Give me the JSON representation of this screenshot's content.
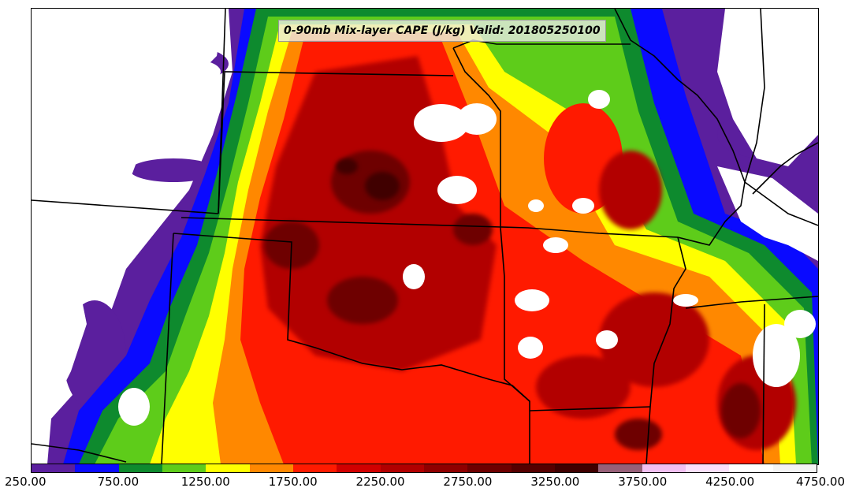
{
  "title": "0-90mb Mix-layer CAPE (J/kg) Valid: 201805250100",
  "colorbar": {
    "colors": [
      "#5b1f9e",
      "#0a0aff",
      "#0e8a2e",
      "#5ecc1a",
      "#ffff00",
      "#ff8800",
      "#ff1a00",
      "#d10000",
      "#b20000",
      "#8f0000",
      "#6e0000",
      "#560000",
      "#3f0000",
      "#976078",
      "#f2c0f2",
      "#fbe0fb",
      "#ffffff",
      "#f4f4f4"
    ],
    "tick_labels": [
      "250.00",
      "750.00",
      "1250.00",
      "1750.00",
      "2250.00",
      "2750.00",
      "3250.00",
      "3750.00",
      "4250.00",
      "4750.00"
    ]
  }
}
